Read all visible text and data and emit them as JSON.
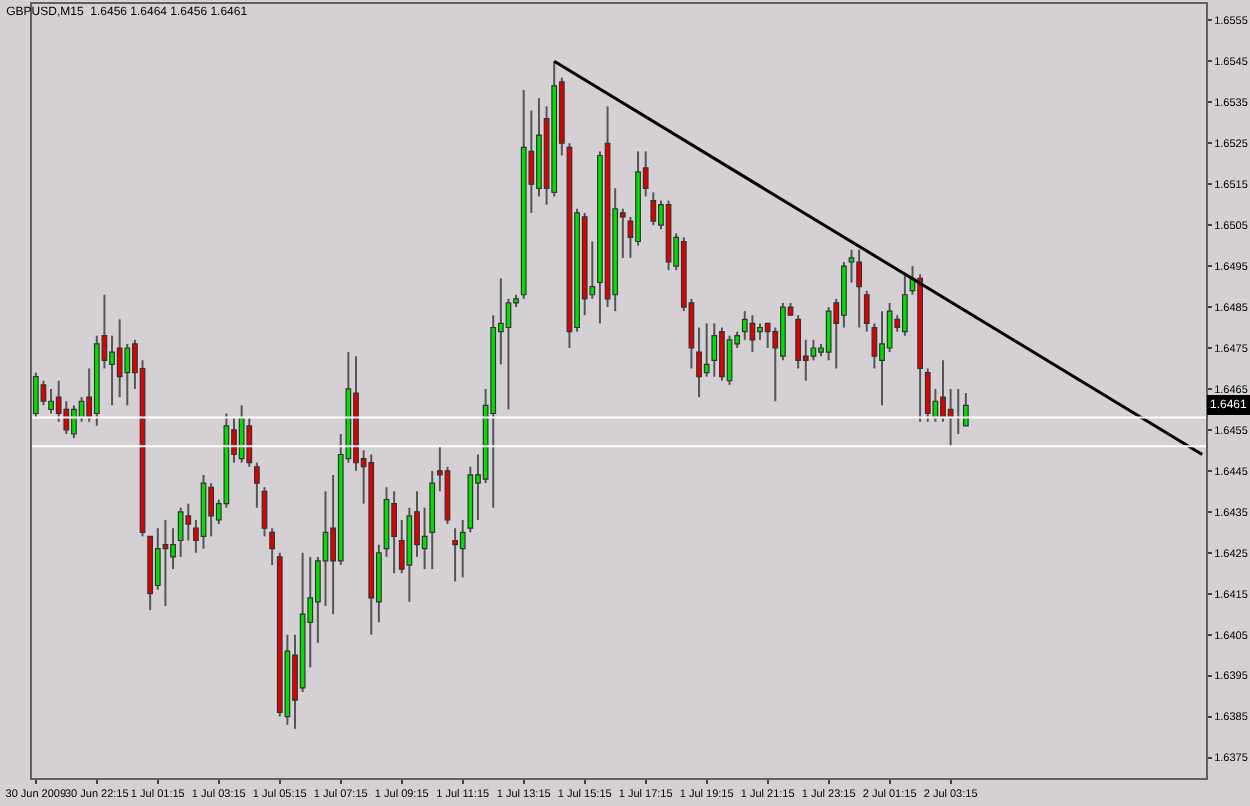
{
  "chart_data": {
    "type": "candlestick",
    "title": "GBPUSD,M15  1.6456 1.6464 1.6456 1.6461",
    "categories": [
      "30 Jun 2009",
      null,
      null,
      null,
      null,
      null,
      null,
      null,
      "30 Jun 22:15",
      null,
      null,
      null,
      null,
      null,
      null,
      null,
      "1 Jul 01:15",
      null,
      null,
      null,
      null,
      null,
      null,
      null,
      "1 Jul 03:15",
      null,
      null,
      null,
      null,
      null,
      null,
      null,
      "1 Jul 05:15",
      null,
      null,
      null,
      null,
      null,
      null,
      null,
      "1 Jul 07:15",
      null,
      null,
      null,
      null,
      null,
      null,
      null,
      "1 Jul 09:15",
      null,
      null,
      null,
      null,
      null,
      null,
      null,
      "1 Jul 11:15",
      null,
      null,
      null,
      null,
      null,
      null,
      null,
      "1 Jul 13:15",
      null,
      null,
      null,
      null,
      null,
      null,
      null,
      "1 Jul 15:15",
      null,
      null,
      null,
      null,
      null,
      null,
      null,
      "1 Jul 17:15",
      null,
      null,
      null,
      null,
      null,
      null,
      null,
      "1 Jul 19:15",
      null,
      null,
      null,
      null,
      null,
      null,
      null,
      "1 Jul 21:15",
      null,
      null,
      null,
      null,
      null,
      null,
      null,
      "1 Jul 23:15",
      null,
      null,
      null,
      null,
      null,
      null,
      null,
      "2 Jul 01:15",
      null,
      null,
      null,
      null,
      null,
      null,
      null,
      "2 Jul 03:15",
      null,
      null,
      null,
      null,
      null,
      null,
      null,
      null,
      null,
      null,
      null,
      null,
      null,
      null,
      null,
      null,
      null,
      null,
      null,
      null,
      null,
      null,
      null,
      null,
      null,
      null,
      null,
      null,
      null,
      null,
      null,
      null,
      null
    ],
    "colors": [
      "#00e000",
      "#e00000"
    ],
    "ylim": [
      1.637,
      1.6559
    ],
    "yticks": [
      1.6375,
      1.6385,
      1.6395,
      1.6405,
      1.6415,
      1.6425,
      1.6435,
      1.6445,
      1.6455,
      1.6465,
      1.6475,
      1.6485,
      1.6495,
      1.6505,
      1.6515,
      1.6525,
      1.6535,
      1.6545,
      1.6555
    ],
    "grid": false,
    "legend": false,
    "ref_lines": [
      {
        "axis": "y",
        "value": 1.6458,
        "color": "#ffffff"
      },
      {
        "axis": "y",
        "value": 1.6451,
        "color": "#ffffff"
      }
    ],
    "annotations": [
      "1.6461"
    ],
    "series": [
      {
        "ohlc": [
          [
            1.6459,
            1.6469,
            1.6458,
            1.6468
          ],
          [
            1.6466,
            1.6467,
            1.6461,
            1.6462
          ],
          [
            1.646,
            1.6465,
            1.6459,
            1.6462
          ],
          [
            1.6463,
            1.6467,
            1.6457,
            1.6459
          ],
          [
            1.646,
            1.6462,
            1.6454,
            1.6455
          ],
          [
            1.6454,
            1.6461,
            1.6453,
            1.646
          ],
          [
            1.6458,
            1.6463,
            1.6457,
            1.6462
          ],
          [
            1.6463,
            1.647,
            1.6457,
            1.6458
          ],
          [
            1.6459,
            1.6478,
            1.6456,
            1.6476
          ],
          [
            1.6478,
            1.6488,
            1.647,
            1.6472
          ],
          [
            1.6471,
            1.6478,
            1.6461,
            1.6474
          ],
          [
            1.6475,
            1.6482,
            1.6463,
            1.6468
          ],
          [
            1.6469,
            1.6476,
            1.6461,
            1.6475
          ],
          [
            1.6476,
            1.6477,
            1.6465,
            1.6469
          ],
          [
            1.647,
            1.6472,
            1.6429,
            1.643
          ],
          [
            1.6429,
            1.6429,
            1.6411,
            1.6415
          ],
          [
            1.6417,
            1.6431,
            1.6416,
            1.6426
          ],
          [
            1.6427,
            1.6433,
            1.6412,
            1.6426
          ],
          [
            1.6424,
            1.6431,
            1.6421,
            1.6427
          ],
          [
            1.6428,
            1.6436,
            1.6424,
            1.6435
          ],
          [
            1.6434,
            1.6437,
            1.6428,
            1.6432
          ],
          [
            1.6431,
            1.6433,
            1.6425,
            1.6428
          ],
          [
            1.6429,
            1.6444,
            1.6426,
            1.6442
          ],
          [
            1.6441,
            1.6442,
            1.6429,
            1.6434
          ],
          [
            1.6433,
            1.6438,
            1.6432,
            1.6437
          ],
          [
            1.6437,
            1.6459,
            1.6436,
            1.6456
          ],
          [
            1.6455,
            1.6458,
            1.6447,
            1.6449
          ],
          [
            1.6448,
            1.6461,
            1.6447,
            1.6458
          ],
          [
            1.6456,
            1.6458,
            1.6446,
            1.6447
          ],
          [
            1.6446,
            1.6447,
            1.6436,
            1.6442
          ],
          [
            1.644,
            1.6441,
            1.6429,
            1.6431
          ],
          [
            1.643,
            1.6431,
            1.6422,
            1.6426
          ],
          [
            1.6424,
            1.6425,
            1.6385,
            1.6386
          ],
          [
            1.6385,
            1.6405,
            1.6383,
            1.6401
          ],
          [
            1.64,
            1.6405,
            1.6382,
            1.6389
          ],
          [
            1.6392,
            1.6425,
            1.6391,
            1.641
          ],
          [
            1.6408,
            1.6424,
            1.6397,
            1.6414
          ],
          [
            1.6413,
            1.6424,
            1.6403,
            1.6423
          ],
          [
            1.6423,
            1.644,
            1.6412,
            1.643
          ],
          [
            1.6431,
            1.6444,
            1.641,
            1.6423
          ],
          [
            1.6423,
            1.6454,
            1.6422,
            1.6449
          ],
          [
            1.6448,
            1.6474,
            1.6447,
            1.6465
          ],
          [
            1.6464,
            1.6473,
            1.6445,
            1.6447
          ],
          [
            1.6448,
            1.645,
            1.6437,
            1.6446
          ],
          [
            1.6447,
            1.6449,
            1.6405,
            1.6414
          ],
          [
            1.6413,
            1.6427,
            1.6408,
            1.6425
          ],
          [
            1.6426,
            1.6441,
            1.6424,
            1.6438
          ],
          [
            1.6437,
            1.644,
            1.642,
            1.6429
          ],
          [
            1.6428,
            1.6433,
            1.642,
            1.6421
          ],
          [
            1.6422,
            1.6436,
            1.6413,
            1.6434
          ],
          [
            1.6435,
            1.644,
            1.6424,
            1.6427
          ],
          [
            1.6426,
            1.6436,
            1.6421,
            1.6429
          ],
          [
            1.643,
            1.6445,
            1.6421,
            1.6442
          ],
          [
            1.6445,
            1.6451,
            1.644,
            1.6444
          ],
          [
            1.6445,
            1.6446,
            1.6432,
            1.6433
          ],
          [
            1.6428,
            1.6431,
            1.6418,
            1.6427
          ],
          [
            1.6426,
            1.6433,
            1.6419,
            1.643
          ],
          [
            1.6431,
            1.6446,
            1.643,
            1.6444
          ],
          [
            1.6442,
            1.6449,
            1.6433,
            1.6444
          ],
          [
            1.6443,
            1.6465,
            1.6442,
            1.6461
          ],
          [
            1.6459,
            1.6483,
            1.6436,
            1.648
          ],
          [
            1.6479,
            1.6492,
            1.6471,
            1.6481
          ],
          [
            1.648,
            1.6487,
            1.646,
            1.6486
          ],
          [
            1.6486,
            1.6488,
            1.6485,
            1.6487
          ],
          [
            1.6488,
            1.6538,
            1.6487,
            1.6524
          ],
          [
            1.6523,
            1.6533,
            1.6508,
            1.6515
          ],
          [
            1.6514,
            1.6536,
            1.6512,
            1.6527
          ],
          [
            1.6531,
            1.6534,
            1.651,
            1.6514
          ],
          [
            1.6513,
            1.6545,
            1.6512,
            1.6539
          ],
          [
            1.654,
            1.6541,
            1.6522,
            1.6525
          ],
          [
            1.6524,
            1.6525,
            1.6475,
            1.6479
          ],
          [
            1.648,
            1.6509,
            1.6479,
            1.6508
          ],
          [
            1.6507,
            1.6508,
            1.6483,
            1.6487
          ],
          [
            1.6488,
            1.6501,
            1.6487,
            1.649
          ],
          [
            1.6491,
            1.6523,
            1.6481,
            1.6522
          ],
          [
            1.6525,
            1.6534,
            1.6485,
            1.6487
          ],
          [
            1.6488,
            1.6514,
            1.6484,
            1.6509
          ],
          [
            1.6508,
            1.6509,
            1.6497,
            1.6507
          ],
          [
            1.6506,
            1.6507,
            1.6497,
            1.6502
          ],
          [
            1.6501,
            1.6523,
            1.65,
            1.6518
          ],
          [
            1.6519,
            1.6523,
            1.6512,
            1.6514
          ],
          [
            1.6511,
            1.6513,
            1.6505,
            1.6506
          ],
          [
            1.6505,
            1.6511,
            1.6504,
            1.651
          ],
          [
            1.651,
            1.6511,
            1.6494,
            1.6496
          ],
          [
            1.6495,
            1.6503,
            1.6494,
            1.6502
          ],
          [
            1.6501,
            1.6502,
            1.6484,
            1.6485
          ],
          [
            1.6486,
            1.6487,
            1.647,
            1.6475
          ],
          [
            1.6474,
            1.648,
            1.6463,
            1.6468
          ],
          [
            1.6469,
            1.6481,
            1.6468,
            1.6471
          ],
          [
            1.6472,
            1.6481,
            1.6468,
            1.6478
          ],
          [
            1.6479,
            1.648,
            1.6467,
            1.6468
          ],
          [
            1.6467,
            1.6478,
            1.6466,
            1.6477
          ],
          [
            1.6476,
            1.6479,
            1.6475,
            1.6478
          ],
          [
            1.6479,
            1.6484,
            1.6477,
            1.6482
          ],
          [
            1.6481,
            1.6483,
            1.6474,
            1.6477
          ],
          [
            1.6479,
            1.6481,
            1.6477,
            1.648
          ],
          [
            1.6481,
            1.6481,
            1.6475,
            1.6479
          ],
          [
            1.6479,
            1.648,
            1.6462,
            1.6475
          ],
          [
            1.6473,
            1.6486,
            1.6472,
            1.6485
          ],
          [
            1.6485,
            1.6486,
            1.6483,
            1.6483
          ],
          [
            1.6482,
            1.6483,
            1.647,
            1.6472
          ],
          [
            1.6473,
            1.6477,
            1.6467,
            1.6472
          ],
          [
            1.6473,
            1.6477,
            1.6472,
            1.6475
          ],
          [
            1.6474,
            1.6476,
            1.6473,
            1.6475
          ],
          [
            1.6474,
            1.6485,
            1.6472,
            1.6484
          ],
          [
            1.6486,
            1.6487,
            1.647,
            1.6481
          ],
          [
            1.6483,
            1.6496,
            1.648,
            1.6495
          ],
          [
            1.6496,
            1.6499,
            1.6491,
            1.6497
          ],
          [
            1.6496,
            1.6499,
            1.648,
            1.649
          ],
          [
            1.6488,
            1.6489,
            1.6479,
            1.6481
          ],
          [
            1.648,
            1.6481,
            1.647,
            1.6473
          ],
          [
            1.6472,
            1.6484,
            1.6461,
            1.6476
          ],
          [
            1.6475,
            1.6486,
            1.6474,
            1.6484
          ],
          [
            1.6482,
            1.6483,
            1.6479,
            1.648
          ],
          [
            1.6479,
            1.6493,
            1.6478,
            1.6488
          ],
          [
            1.6489,
            1.6495,
            1.6488,
            1.6492
          ],
          [
            1.6492,
            1.6493,
            1.6457,
            1.647
          ],
          [
            1.6469,
            1.647,
            1.6457,
            1.6459
          ],
          [
            1.6458,
            1.6465,
            1.6457,
            1.6462
          ],
          [
            1.6463,
            1.6472,
            1.6457,
            1.6458
          ],
          [
            1.646,
            1.6465,
            1.6451,
            1.6458
          ],
          [
            1.6458,
            1.6465,
            1.6454,
            1.6458
          ],
          [
            1.6456,
            1.6464,
            1.6456,
            1.6461
          ],
          null,
          null,
          null,
          null,
          null,
          null,
          null,
          null,
          null,
          null,
          null,
          null,
          null,
          null,
          null,
          null,
          null,
          null,
          null,
          null,
          null,
          null,
          null,
          null,
          null,
          null,
          null,
          null,
          null,
          null,
          null
        ]
      },
      {
        "type": "line",
        "color": "#000000",
        "values": [
          null,
          null,
          null,
          null,
          null,
          null,
          null,
          null,
          null,
          null,
          null,
          null,
          null,
          null,
          null,
          null,
          null,
          null,
          null,
          null,
          null,
          null,
          null,
          null,
          null,
          null,
          null,
          null,
          null,
          null,
          null,
          null,
          null,
          null,
          null,
          null,
          null,
          null,
          null,
          null,
          null,
          null,
          null,
          null,
          null,
          null,
          null,
          null,
          null,
          null,
          null,
          null,
          null,
          null,
          null,
          null,
          null,
          null,
          null,
          null,
          null,
          null,
          null,
          null,
          null,
          null,
          null,
          null,
          1.6545,
          null,
          null,
          null,
          null,
          null,
          null,
          null,
          null,
          null,
          null,
          null,
          null,
          null,
          null,
          null,
          null,
          null,
          null,
          null,
          null,
          null,
          null,
          null,
          null,
          null,
          null,
          null,
          null,
          null,
          null,
          null,
          null,
          null,
          null,
          null,
          null,
          null,
          null,
          null,
          null,
          null,
          null,
          null,
          null,
          null,
          null,
          null,
          null,
          null,
          null,
          null,
          null,
          null,
          null,
          null,
          null,
          null,
          null,
          null,
          null,
          null,
          null,
          null,
          null,
          null,
          null,
          null,
          null,
          null,
          null,
          null,
          null,
          null,
          null,
          null,
          null,
          null,
          null,
          null,
          null,
          null,
          null,
          null,
          null,
          1.6449
        ]
      }
    ]
  }
}
